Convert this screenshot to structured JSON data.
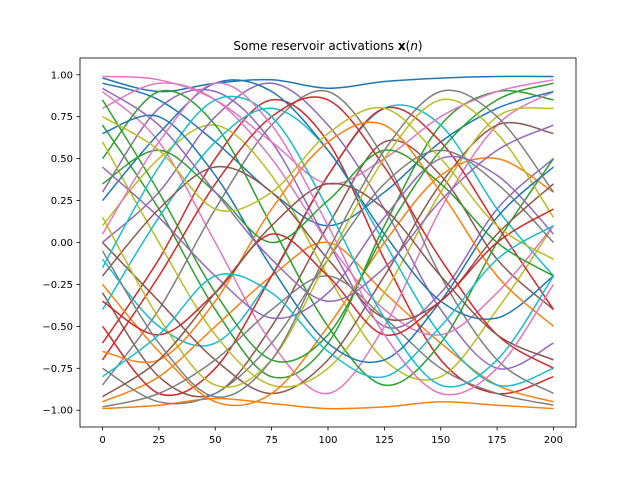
{
  "chart_data": {
    "type": "line",
    "title": "Some reservoir activations 𝐱(n)",
    "title_parts": {
      "prefix": "Some reservoir activations ",
      "vector": "x",
      "arg_open": "(",
      "arg_var": "n",
      "arg_close": ")"
    },
    "xlabel": "",
    "ylabel": "",
    "xlim": [
      -10,
      210
    ],
    "ylim": [
      -1.1,
      1.1
    ],
    "xticks": [
      0,
      25,
      50,
      75,
      100,
      125,
      150,
      175,
      200
    ],
    "xtick_labels": [
      "0",
      "25",
      "50",
      "75",
      "100",
      "125",
      "150",
      "175",
      "200"
    ],
    "yticks": [
      1.0,
      0.75,
      0.5,
      0.25,
      0.0,
      -0.25,
      -0.5,
      -0.75,
      -1.0
    ],
    "ytick_labels": [
      "1.00",
      "0.75",
      "0.50",
      "0.25",
      "0.00",
      "−0.25",
      "−0.50",
      "−0.75",
      "−1.00"
    ],
    "grid": false,
    "legend": "none",
    "x": [
      0,
      25,
      50,
      75,
      100,
      125,
      150,
      175,
      200
    ],
    "palette": [
      "#1f77b4",
      "#ff7f0e",
      "#2ca02c",
      "#d62728",
      "#9467bd",
      "#8c564b",
      "#e377c2",
      "#7f7f7f",
      "#bcbd22",
      "#17becf"
    ],
    "series": [
      {
        "values": [
          0.98,
          0.9,
          0.95,
          0.97,
          0.92,
          0.96,
          0.98,
          0.99,
          0.99
        ]
      },
      {
        "values": [
          -0.99,
          -0.97,
          -0.93,
          -0.96,
          -0.99,
          -0.98,
          -0.95,
          -0.97,
          -0.99
        ]
      },
      {
        "values": [
          0.7,
          0.2,
          -0.4,
          -0.8,
          -0.6,
          0.1,
          0.7,
          0.9,
          0.85
        ]
      },
      {
        "values": [
          -0.6,
          -0.1,
          0.5,
          0.85,
          0.6,
          -0.1,
          -0.7,
          -0.9,
          -0.8
        ]
      },
      {
        "values": [
          0.3,
          0.8,
          0.9,
          0.6,
          0.0,
          -0.5,
          -0.3,
          0.2,
          0.5
        ]
      },
      {
        "values": [
          -0.3,
          -0.8,
          -0.9,
          -0.5,
          0.1,
          0.6,
          0.4,
          -0.1,
          -0.4
        ]
      },
      {
        "values": [
          0.9,
          0.6,
          0.0,
          -0.6,
          -0.9,
          -0.5,
          0.2,
          0.7,
          0.9
        ]
      },
      {
        "values": [
          -0.85,
          -0.4,
          0.2,
          0.7,
          0.9,
          0.5,
          -0.2,
          -0.7,
          -0.9
        ]
      },
      {
        "values": [
          0.1,
          0.5,
          0.7,
          0.4,
          -0.2,
          -0.7,
          -0.8,
          -0.4,
          0.1
        ]
      },
      {
        "values": [
          -0.1,
          -0.5,
          -0.6,
          -0.2,
          0.4,
          0.8,
          0.7,
          0.2,
          -0.2
        ]
      },
      {
        "values": [
          0.95,
          0.85,
          0.6,
          0.3,
          0.1,
          0.3,
          0.6,
          0.8,
          0.9
        ]
      },
      {
        "values": [
          -0.95,
          -0.8,
          -0.5,
          -0.2,
          0.0,
          -0.3,
          -0.6,
          -0.85,
          -0.95
        ]
      },
      {
        "values": [
          0.5,
          0.9,
          0.7,
          0.1,
          -0.5,
          -0.85,
          -0.6,
          0.0,
          0.5
        ]
      },
      {
        "values": [
          -0.5,
          -0.9,
          -0.75,
          -0.2,
          0.4,
          0.8,
          0.6,
          0.1,
          -0.4
        ]
      },
      {
        "values": [
          0.0,
          0.3,
          0.75,
          0.95,
          0.7,
          0.2,
          -0.4,
          -0.75,
          -0.6
        ]
      },
      {
        "values": [
          0.0,
          -0.35,
          -0.7,
          -0.9,
          -0.7,
          -0.2,
          0.35,
          0.7,
          0.65
        ]
      },
      {
        "values": [
          0.8,
          0.95,
          0.85,
          0.5,
          0.0,
          -0.4,
          -0.55,
          -0.3,
          0.1
        ]
      },
      {
        "values": [
          -0.75,
          -0.95,
          -0.9,
          -0.6,
          -0.1,
          0.35,
          0.55,
          0.35,
          0.0
        ]
      },
      {
        "values": [
          0.6,
          0.0,
          -0.55,
          -0.85,
          -0.75,
          -0.3,
          0.3,
          0.75,
          0.8
        ]
      },
      {
        "values": [
          -0.4,
          0.15,
          0.6,
          0.8,
          0.55,
          0.0,
          -0.55,
          -0.85,
          -0.75
        ]
      },
      {
        "values": [
          0.25,
          0.65,
          0.95,
          0.9,
          0.55,
          0.05,
          -0.35,
          -0.45,
          -0.2
        ]
      },
      {
        "values": [
          -0.25,
          -0.65,
          -0.95,
          -0.9,
          -0.5,
          0.0,
          0.4,
          0.5,
          0.3
        ]
      },
      {
        "values": [
          0.85,
          0.3,
          -0.3,
          -0.7,
          -0.55,
          0.05,
          0.55,
          0.85,
          0.95
        ]
      },
      {
        "values": [
          -0.7,
          -0.2,
          0.35,
          0.75,
          0.85,
          0.45,
          -0.1,
          -0.55,
          -0.75
        ]
      },
      {
        "values": [
          0.45,
          0.15,
          -0.2,
          -0.45,
          -0.3,
          0.15,
          0.5,
          0.4,
          0.05
        ]
      },
      {
        "values": [
          -0.2,
          0.2,
          0.45,
          0.3,
          -0.1,
          -0.45,
          -0.35,
          0.05,
          0.35
        ]
      },
      {
        "values": [
          0.99,
          0.97,
          0.85,
          0.6,
          0.35,
          0.5,
          0.75,
          0.9,
          0.97
        ]
      },
      {
        "values": [
          -0.98,
          -0.9,
          -0.7,
          -0.4,
          -0.2,
          -0.45,
          -0.75,
          -0.9,
          -0.97
        ]
      },
      {
        "values": [
          0.15,
          -0.45,
          -0.85,
          -0.7,
          -0.1,
          0.5,
          0.85,
          0.65,
          0.15
        ]
      },
      {
        "values": [
          -0.15,
          0.45,
          0.85,
          0.75,
          0.2,
          -0.45,
          -0.85,
          -0.7,
          -0.2
        ]
      },
      {
        "values": [
          0.65,
          0.75,
          0.4,
          -0.15,
          -0.6,
          -0.7,
          -0.35,
          0.15,
          0.45
        ]
      },
      {
        "values": [
          -0.65,
          -0.7,
          -0.35,
          0.2,
          0.6,
          0.7,
          0.3,
          -0.2,
          -0.5
        ]
      },
      {
        "values": [
          0.35,
          0.55,
          0.3,
          0.0,
          0.25,
          0.55,
          0.35,
          0.0,
          -0.2
        ]
      },
      {
        "values": [
          -0.35,
          -0.55,
          -0.3,
          0.05,
          -0.2,
          -0.55,
          -0.35,
          0.0,
          0.2
        ]
      },
      {
        "values": [
          0.92,
          0.7,
          0.3,
          -0.1,
          -0.35,
          -0.15,
          0.25,
          0.55,
          0.7
        ]
      },
      {
        "values": [
          -0.92,
          -0.7,
          -0.3,
          0.1,
          0.35,
          0.2,
          -0.2,
          -0.55,
          -0.7
        ]
      },
      {
        "values": [
          0.05,
          0.6,
          0.95,
          0.7,
          0.1,
          -0.55,
          -0.9,
          -0.75,
          -0.25
        ]
      },
      {
        "values": [
          -0.05,
          -0.6,
          -0.92,
          -0.7,
          -0.05,
          0.55,
          0.9,
          0.75,
          0.3
        ]
      },
      {
        "values": [
          0.75,
          0.55,
          0.2,
          0.3,
          0.65,
          0.8,
          0.5,
          0.1,
          -0.1
        ]
      },
      {
        "values": [
          -0.8,
          -0.55,
          -0.2,
          -0.3,
          -0.65,
          -0.8,
          -0.5,
          -0.1,
          0.1
        ]
      }
    ]
  }
}
